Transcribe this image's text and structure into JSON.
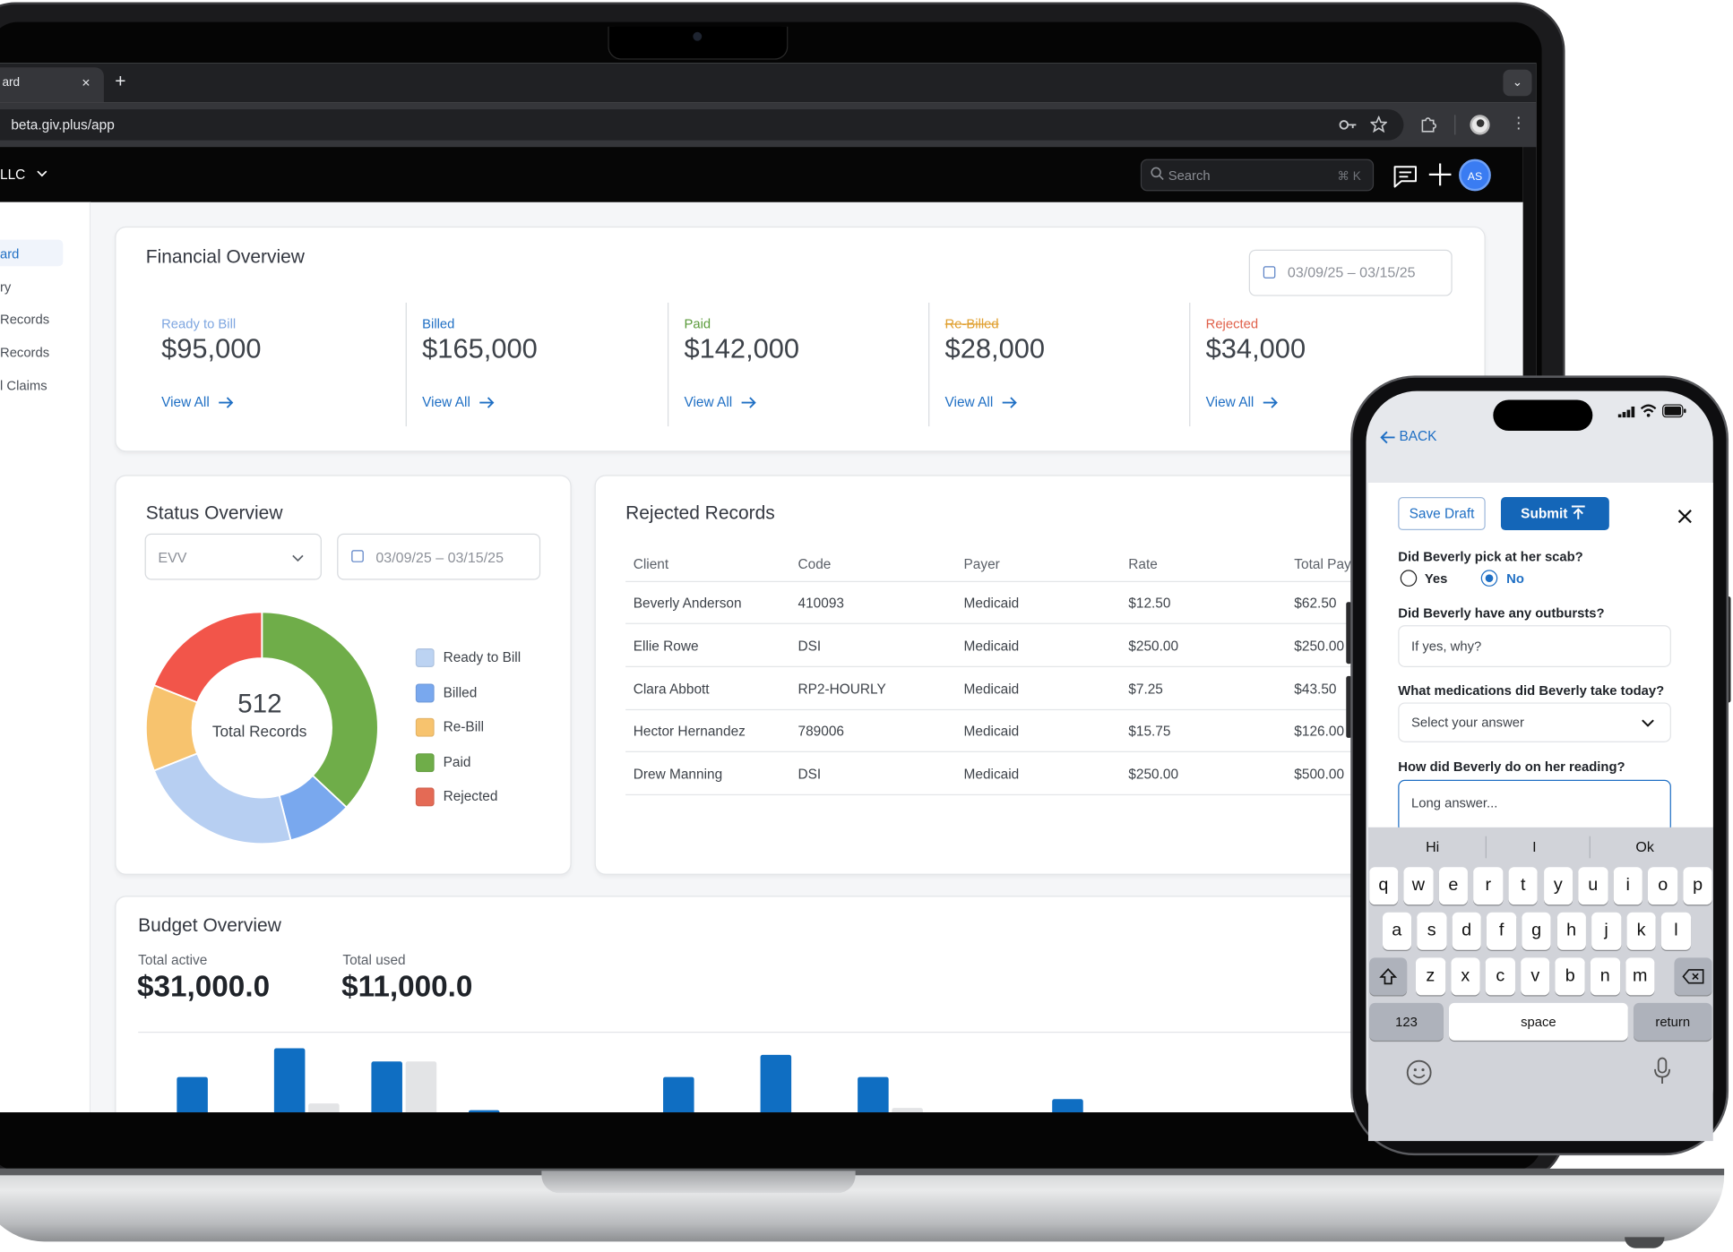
{
  "browser": {
    "tab_title": "ard",
    "tab_close": "×",
    "new_tab": "+",
    "tab_menu": "⌄",
    "url": "beta.giv.plus/app"
  },
  "app": {
    "org_name": "LLC",
    "search_placeholder": "Search",
    "search_shortcut": "⌘ K",
    "avatar_initials": "AS"
  },
  "sidebar": {
    "items": [
      {
        "label": "ard",
        "active": true
      },
      {
        "label": "ry",
        "active": false
      },
      {
        "label": "Records",
        "active": false
      },
      {
        "label": "Records",
        "active": false
      },
      {
        "label": "l Claims",
        "active": false
      }
    ]
  },
  "financial": {
    "title": "Financial Overview",
    "date_range": "03/09/25 – 03/15/25",
    "cards": [
      {
        "label": "Ready to Bill",
        "value": "$95,000",
        "link": "View All",
        "color": "#7ea6e0"
      },
      {
        "label": "Billed",
        "value": "$165,000",
        "link": "View All",
        "color": "#1f6fc4"
      },
      {
        "label": "Paid",
        "value": "$142,000",
        "link": "View All",
        "color": "#5a9a3a"
      },
      {
        "label": "Re-Billed",
        "value": "$28,000",
        "link": "View All",
        "color": "#e0a030"
      },
      {
        "label": "Rejected",
        "value": "$34,000",
        "link": "View All",
        "color": "#e0604a"
      }
    ]
  },
  "status": {
    "title": "Status Overview",
    "filter_value": "EVV",
    "date_range": "03/09/25 – 03/15/25",
    "total_value": "512",
    "total_label": "Total Records",
    "legend": [
      {
        "label": "Ready to Bill",
        "color": "#bcd3f2"
      },
      {
        "label": "Billed",
        "color": "#79a8ee"
      },
      {
        "label": "Re-Bill",
        "color": "#f7c36e"
      },
      {
        "label": "Paid",
        "color": "#6fad49"
      },
      {
        "label": "Rejected",
        "color": "#e46a55"
      }
    ],
    "chart_data": {
      "type": "pie",
      "categories": [
        "Paid",
        "Billed",
        "Ready to Bill",
        "Re-Bill",
        "Rejected"
      ],
      "values": [
        37,
        9,
        23,
        12,
        19
      ],
      "colors": [
        "#6fad49",
        "#79a8ee",
        "#b7cff2",
        "#f7c36e",
        "#f2554a"
      ]
    }
  },
  "rejected": {
    "title": "Rejected Records",
    "columns": [
      "Client",
      "Code",
      "Payer",
      "Rate",
      "Total Pay"
    ],
    "rows": [
      [
        "Beverly Anderson",
        "410093",
        "Medicaid",
        "$12.50",
        "$62.50"
      ],
      [
        "Ellie Rowe",
        "DSI",
        "Medicaid",
        "$250.00",
        "$250.00"
      ],
      [
        "Clara Abbott",
        "RP2-HOURLY",
        "Medicaid",
        "$7.25",
        "$43.50"
      ],
      [
        "Hector Hernandez",
        "789006",
        "Medicaid",
        "$15.75",
        "$126.00"
      ],
      [
        "Drew Manning",
        "DSI",
        "Medicaid",
        "$250.00",
        "$500.00"
      ]
    ]
  },
  "budget": {
    "title": "Budget Overview",
    "total_active_label": "Total active",
    "total_active_value": "$31,000.0",
    "total_used_label": "Total used",
    "total_used_value": "$11,000.0",
    "chart_data": {
      "type": "bar",
      "series": [
        {
          "values": [
            32,
            58,
            46,
            2,
            0,
            32,
            52,
            32,
            0,
            12
          ]
        },
        {
          "values": [
            0,
            8,
            46,
            0,
            0,
            0,
            0,
            4,
            0,
            0
          ]
        }
      ]
    }
  },
  "phone": {
    "back_label": "BACK",
    "save_draft": "Save Draft",
    "submit": "Submit",
    "q1": "Did Beverly pick at her scab?",
    "q1_opt_yes": "Yes",
    "q1_opt_no": "No",
    "q1_selected": "No",
    "q2": "Did Beverly have any outbursts?",
    "q2_placeholder": "If yes, why?",
    "q3": "What medications did Beverly take today?",
    "q3_select": "Select your answer",
    "q4": "How did Beverly do on her reading?",
    "q4_placeholder": "Long answer...",
    "suggestions": [
      "Hi",
      "I",
      "Ok"
    ],
    "keys_row1": [
      "q",
      "w",
      "e",
      "r",
      "t",
      "y",
      "u",
      "i",
      "o",
      "p"
    ],
    "keys_row2": [
      "a",
      "s",
      "d",
      "f",
      "g",
      "h",
      "j",
      "k",
      "l"
    ],
    "keys_row3": [
      "z",
      "x",
      "c",
      "v",
      "b",
      "n",
      "m"
    ],
    "key_123": "123",
    "key_space": "space",
    "key_return": "return"
  }
}
